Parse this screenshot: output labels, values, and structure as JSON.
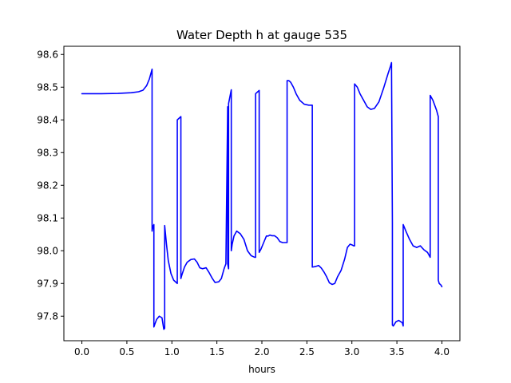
{
  "chart_data": {
    "type": "line",
    "title": "Water Depth h at gauge 535",
    "xlabel": "hours",
    "ylabel": "",
    "xlim": [
      -0.2,
      4.2
    ],
    "ylim": [
      97.725,
      98.625
    ],
    "xticks": [
      0.0,
      0.5,
      1.0,
      1.5,
      2.0,
      2.5,
      3.0,
      3.5,
      4.0
    ],
    "xtick_labels": [
      "0.0",
      "0.5",
      "1.0",
      "1.5",
      "2.0",
      "2.5",
      "3.0",
      "3.5",
      "4.0"
    ],
    "yticks": [
      97.8,
      97.9,
      98.0,
      98.1,
      98.2,
      98.3,
      98.4,
      98.5,
      98.6
    ],
    "ytick_labels": [
      "97.8",
      "97.9",
      "98.0",
      "98.1",
      "98.2",
      "98.3",
      "98.4",
      "98.5",
      "98.6"
    ],
    "grid": false,
    "color": "#0000ff",
    "series": [
      {
        "x": [
          0.0,
          0.2,
          0.4,
          0.55,
          0.63,
          0.68,
          0.72,
          0.75,
          0.77,
          0.78,
          0.78,
          0.79,
          0.8,
          0.8,
          0.81,
          0.83,
          0.86,
          0.89,
          0.91,
          0.92,
          0.92,
          0.94,
          0.96,
          0.99,
          1.02,
          1.06,
          1.06,
          1.1,
          1.1,
          1.11,
          1.14,
          1.17,
          1.21,
          1.25,
          1.28,
          1.31,
          1.34,
          1.38,
          1.41,
          1.45,
          1.48,
          1.52,
          1.55,
          1.58,
          1.6,
          1.62,
          1.62,
          1.63,
          1.63,
          1.66,
          1.66,
          1.67,
          1.69,
          1.72,
          1.76,
          1.8,
          1.84,
          1.88,
          1.92,
          1.93,
          1.93,
          1.97,
          1.97,
          1.99,
          2.02,
          2.05,
          2.07,
          2.09,
          2.11,
          2.14,
          2.17,
          2.2,
          2.23,
          2.26,
          2.28,
          2.28,
          2.3,
          2.32,
          2.35,
          2.38,
          2.42,
          2.47,
          2.52,
          2.56,
          2.56,
          2.6,
          2.63,
          2.66,
          2.69,
          2.72,
          2.75,
          2.78,
          2.81,
          2.84,
          2.88,
          2.92,
          2.95,
          2.98,
          3.0,
          3.02,
          3.03,
          3.03,
          3.06,
          3.09,
          3.13,
          3.17,
          3.21,
          3.25,
          3.3,
          3.35,
          3.4,
          3.43,
          3.44,
          3.45,
          3.45,
          3.46,
          3.49,
          3.52,
          3.56,
          3.57,
          3.57,
          3.6,
          3.64,
          3.68,
          3.72,
          3.76,
          3.8,
          3.84,
          3.87,
          3.87,
          3.9,
          3.94,
          3.96,
          3.96,
          3.97,
          3.99,
          4.0
        ],
        "y": [
          98.48,
          98.48,
          98.481,
          98.483,
          98.486,
          98.491,
          98.505,
          98.525,
          98.545,
          98.555,
          98.06,
          98.075,
          98.08,
          97.767,
          97.775,
          97.79,
          97.8,
          97.795,
          97.76,
          97.763,
          98.077,
          98.02,
          97.97,
          97.93,
          97.91,
          97.9,
          98.4,
          98.41,
          97.915,
          97.925,
          97.95,
          97.965,
          97.973,
          97.975,
          97.965,
          97.948,
          97.945,
          97.948,
          97.935,
          97.915,
          97.903,
          97.905,
          97.915,
          97.945,
          97.96,
          98.44,
          97.96,
          97.945,
          98.45,
          98.492,
          98.0,
          98.02,
          98.045,
          98.06,
          98.052,
          98.035,
          98.0,
          97.985,
          97.98,
          97.98,
          98.48,
          98.49,
          97.995,
          98.005,
          98.025,
          98.045,
          98.045,
          98.048,
          98.046,
          98.046,
          98.04,
          98.028,
          98.025,
          98.025,
          98.025,
          98.52,
          98.52,
          98.515,
          98.5,
          98.48,
          98.46,
          98.448,
          98.445,
          98.445,
          97.95,
          97.952,
          97.955,
          97.947,
          97.935,
          97.92,
          97.902,
          97.897,
          97.9,
          97.92,
          97.94,
          97.975,
          98.01,
          98.02,
          98.018,
          98.015,
          98.015,
          98.51,
          98.5,
          98.48,
          98.46,
          98.44,
          98.432,
          98.435,
          98.455,
          98.495,
          98.54,
          98.565,
          98.575,
          98.085,
          97.773,
          97.77,
          97.783,
          97.787,
          97.78,
          97.77,
          98.08,
          98.06,
          98.035,
          98.015,
          98.01,
          98.015,
          98.003,
          97.995,
          97.98,
          98.475,
          98.46,
          98.43,
          98.41,
          97.91,
          97.9,
          97.895,
          97.89
        ]
      }
    ]
  }
}
